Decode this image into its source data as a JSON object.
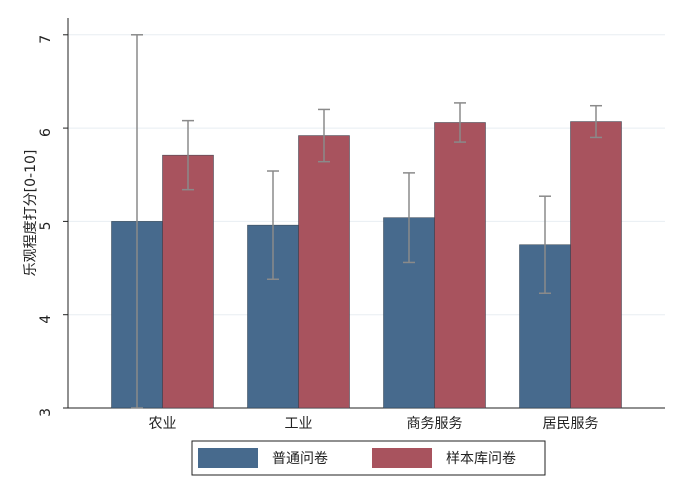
{
  "chart_data": {
    "type": "bar",
    "y_label": "乐观程度打分[0-10]",
    "categories": [
      "农业",
      "工业",
      "商务服务",
      "居民服务"
    ],
    "series": [
      {
        "name": "普通问卷",
        "color": "#476a8d",
        "values": [
          5.0,
          4.96,
          5.04,
          4.75
        ],
        "errors": [
          2.0,
          0.58,
          0.48,
          0.52
        ]
      },
      {
        "name": "样本库问卷",
        "color": "#a8535e",
        "values": [
          5.71,
          5.92,
          6.06,
          6.07
        ],
        "errors": [
          0.37,
          0.28,
          0.21,
          0.17
        ]
      }
    ],
    "ylim": [
      3,
      7.18
    ],
    "yticks": [
      3,
      4,
      5,
      6,
      7
    ],
    "grid": true,
    "legend": "bottom"
  }
}
